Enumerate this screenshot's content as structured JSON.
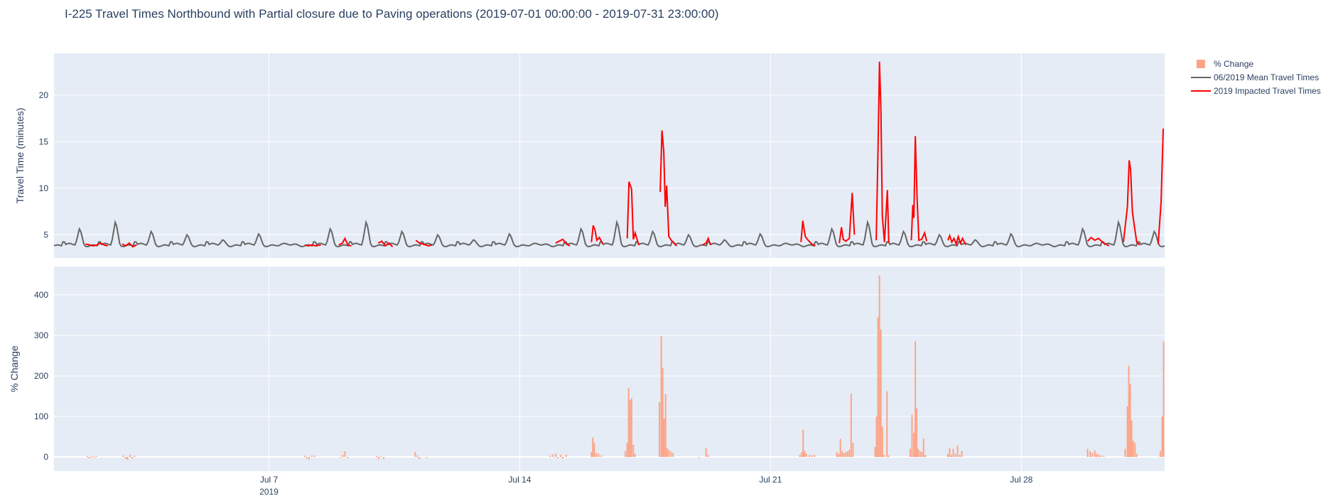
{
  "chart_data": {
    "type": "line+bar",
    "title": "I-225 Travel Times Northbound with Partial closure due to Paving operations (2019-07-01 00:00:00 - 2019-07-31 23:00:00)",
    "legend": {
      "placement": "top-right",
      "entries": [
        "% Change",
        "06/2019 Mean Travel Times",
        "2019 Impacted Travel Times"
      ]
    },
    "colors": {
      "pct_change": "#fca487",
      "mean": "#666666",
      "impacted": "#ff0000",
      "plot_bg": "#e5ecf6",
      "grid": "#ffffff"
    },
    "x_axis": {
      "range_days": [
        1.0,
        32.0
      ],
      "ticks": [
        {
          "day": 7,
          "label": "Jul 7",
          "sublabel": "2019"
        },
        {
          "day": 14,
          "label": "Jul 14",
          "sublabel": ""
        },
        {
          "day": 21,
          "label": "Jul 21",
          "sublabel": ""
        },
        {
          "day": 28,
          "label": "Jul 28",
          "sublabel": ""
        }
      ]
    },
    "top_panel": {
      "ylabel": "Travel Time (minutes)",
      "ylim": [
        2.5,
        24.5
      ],
      "yticks": [
        5,
        10,
        15,
        20
      ],
      "mean_baseline": 3.9,
      "mean_daily_peaks": [
        [
          1.72,
          5.8
        ],
        [
          2.72,
          6.6
        ],
        [
          3.72,
          5.5
        ],
        [
          4.72,
          5.1
        ],
        [
          5.72,
          4.5
        ],
        [
          6.72,
          5.2
        ],
        [
          8.72,
          5.8
        ],
        [
          9.72,
          6.6
        ],
        [
          10.72,
          5.5
        ],
        [
          11.72,
          5.1
        ],
        [
          12.72,
          4.5
        ],
        [
          13.72,
          5.2
        ],
        [
          15.72,
          5.8
        ],
        [
          16.72,
          6.6
        ],
        [
          17.72,
          5.5
        ],
        [
          18.72,
          5.1
        ],
        [
          19.72,
          4.5
        ],
        [
          20.72,
          5.2
        ],
        [
          22.72,
          5.8
        ],
        [
          23.72,
          6.6
        ],
        [
          24.72,
          5.5
        ],
        [
          25.72,
          5.1
        ],
        [
          26.72,
          4.5
        ],
        [
          27.72,
          5.2
        ],
        [
          29.72,
          5.8
        ],
        [
          30.72,
          6.6
        ],
        [
          31.72,
          5.5
        ]
      ],
      "impacted_segments": [
        [
          [
            1.88,
            4.0
          ],
          [
            2.0,
            3.9
          ],
          [
            2.1,
            3.8
          ],
          [
            2.2,
            3.9
          ],
          [
            2.3,
            4.1
          ],
          [
            2.4,
            3.9
          ],
          [
            2.5,
            3.8
          ]
        ],
        [
          [
            2.9,
            4.0
          ],
          [
            3.0,
            3.8
          ],
          [
            3.1,
            4.1
          ],
          [
            3.2,
            3.7
          ],
          [
            3.3,
            3.9
          ]
        ],
        [
          [
            8.0,
            3.9
          ],
          [
            8.1,
            3.8
          ],
          [
            8.2,
            3.9
          ],
          [
            8.3,
            3.8
          ],
          [
            8.45,
            3.9
          ]
        ],
        [
          [
            8.95,
            3.9
          ],
          [
            9.05,
            4.1
          ],
          [
            9.12,
            4.6
          ],
          [
            9.2,
            3.9
          ],
          [
            9.3,
            3.8
          ]
        ],
        [
          [
            10.05,
            4.1
          ],
          [
            10.15,
            4.3
          ],
          [
            10.25,
            3.8
          ],
          [
            10.35,
            4.1
          ],
          [
            10.45,
            3.7
          ]
        ],
        [
          [
            11.1,
            4.4
          ],
          [
            11.2,
            4.1
          ],
          [
            11.3,
            4.0
          ],
          [
            11.45,
            3.8
          ],
          [
            11.55,
            3.9
          ]
        ],
        [
          [
            15.0,
            4.1
          ],
          [
            15.1,
            4.3
          ],
          [
            15.2,
            4.5
          ],
          [
            15.3,
            4.0
          ],
          [
            15.4,
            3.8
          ]
        ],
        [
          [
            16.0,
            4.2
          ],
          [
            16.05,
            6.0
          ],
          [
            16.1,
            5.5
          ],
          [
            16.15,
            4.4
          ],
          [
            16.22,
            4.7
          ],
          [
            16.32,
            4.0
          ]
        ],
        [
          [
            17.0,
            4.6
          ],
          [
            17.05,
            10.7
          ],
          [
            17.12,
            9.9
          ],
          [
            17.17,
            4.5
          ],
          [
            17.22,
            5.2
          ],
          [
            17.32,
            3.9
          ]
        ],
        [
          [
            17.92,
            9.6
          ],
          [
            17.97,
            16.2
          ],
          [
            18.02,
            14.0
          ],
          [
            18.06,
            8.0
          ],
          [
            18.1,
            10.3
          ],
          [
            18.16,
            4.8
          ],
          [
            18.25,
            4.3
          ],
          [
            18.38,
            3.8
          ]
        ],
        [
          [
            19.1,
            3.9
          ],
          [
            19.2,
            4.1
          ],
          [
            19.26,
            4.6
          ],
          [
            19.32,
            3.9
          ]
        ],
        [
          [
            21.85,
            4.2
          ],
          [
            21.9,
            6.5
          ],
          [
            21.97,
            4.8
          ],
          [
            22.05,
            4.4
          ],
          [
            22.15,
            4.0
          ],
          [
            22.25,
            3.8
          ]
        ],
        [
          [
            22.92,
            4.1
          ],
          [
            22.98,
            5.8
          ],
          [
            23.03,
            4.5
          ],
          [
            23.1,
            4.3
          ],
          [
            23.2,
            4.6
          ],
          [
            23.28,
            9.5
          ],
          [
            23.34,
            5.0
          ]
        ],
        [
          [
            23.95,
            4.4
          ],
          [
            24.0,
            14.0
          ],
          [
            24.04,
            23.6
          ],
          [
            24.08,
            18.5
          ],
          [
            24.12,
            7.0
          ],
          [
            24.18,
            4.2
          ],
          [
            24.26,
            9.8
          ],
          [
            24.3,
            4.1
          ]
        ],
        [
          [
            24.93,
            4.4
          ],
          [
            24.97,
            8.2
          ],
          [
            25.0,
            6.8
          ],
          [
            25.04,
            15.6
          ],
          [
            25.09,
            9.0
          ],
          [
            25.14,
            4.4
          ],
          [
            25.22,
            4.5
          ],
          [
            25.3,
            5.2
          ],
          [
            25.36,
            4.3
          ]
        ],
        [
          [
            25.95,
            4.4
          ],
          [
            26.0,
            4.9
          ],
          [
            26.06,
            4.2
          ],
          [
            26.12,
            4.6
          ],
          [
            26.18,
            4.0
          ],
          [
            26.24,
            4.8
          ],
          [
            26.3,
            4.1
          ],
          [
            26.36,
            4.6
          ],
          [
            26.45,
            3.9
          ]
        ],
        [
          [
            29.85,
            4.3
          ],
          [
            29.95,
            4.7
          ],
          [
            30.05,
            4.4
          ],
          [
            30.15,
            4.6
          ],
          [
            30.3,
            4.1
          ],
          [
            30.45,
            3.8
          ]
        ],
        [
          [
            30.85,
            4.2
          ],
          [
            30.96,
            8.0
          ],
          [
            31.01,
            13.0
          ],
          [
            31.05,
            12.0
          ],
          [
            31.1,
            7.5
          ],
          [
            31.16,
            5.8
          ],
          [
            31.22,
            4.2
          ],
          [
            31.3,
            3.9
          ]
        ],
        [
          [
            31.82,
            4.0
          ],
          [
            31.9,
            8.5
          ],
          [
            31.96,
            16.4
          ]
        ]
      ]
    },
    "bottom_panel": {
      "ylabel": "% Change",
      "ylim": [
        -35,
        470
      ],
      "yticks": [
        0,
        100,
        200,
        300,
        400
      ],
      "bars": [
        [
          1.93,
          3
        ],
        [
          1.98,
          -3
        ],
        [
          2.03,
          -2
        ],
        [
          2.08,
          3
        ],
        [
          2.13,
          -2
        ],
        [
          2.18,
          2
        ],
        [
          2.93,
          4
        ],
        [
          3.0,
          -5
        ],
        [
          3.05,
          -7
        ],
        [
          3.12,
          5
        ],
        [
          3.18,
          -4
        ],
        [
          3.25,
          3
        ],
        [
          8.0,
          3
        ],
        [
          8.05,
          -4
        ],
        [
          8.12,
          -6
        ],
        [
          8.2,
          3
        ],
        [
          8.28,
          4
        ],
        [
          9.0,
          -2
        ],
        [
          9.06,
          5
        ],
        [
          9.12,
          14
        ],
        [
          9.2,
          -3
        ],
        [
          10.0,
          3
        ],
        [
          10.06,
          -6
        ],
        [
          10.12,
          2
        ],
        [
          10.2,
          -5
        ],
        [
          11.08,
          12
        ],
        [
          11.14,
          4
        ],
        [
          11.2,
          -5
        ],
        [
          11.4,
          -3
        ],
        [
          14.85,
          3
        ],
        [
          14.92,
          6
        ],
        [
          15.0,
          8
        ],
        [
          15.06,
          -3
        ],
        [
          15.14,
          5
        ],
        [
          15.2,
          -4
        ],
        [
          15.3,
          6
        ],
        [
          16.0,
          12
        ],
        [
          16.04,
          48
        ],
        [
          16.08,
          35
        ],
        [
          16.14,
          10
        ],
        [
          16.2,
          8
        ],
        [
          16.28,
          4
        ],
        [
          16.95,
          15
        ],
        [
          17.0,
          35
        ],
        [
          17.04,
          170
        ],
        [
          17.08,
          140
        ],
        [
          17.12,
          145
        ],
        [
          17.17,
          30
        ],
        [
          17.22,
          8
        ],
        [
          17.9,
          135
        ],
        [
          17.95,
          298
        ],
        [
          17.99,
          220
        ],
        [
          18.03,
          95
        ],
        [
          18.07,
          155
        ],
        [
          18.11,
          22
        ],
        [
          18.16,
          18
        ],
        [
          18.22,
          14
        ],
        [
          18.28,
          10
        ],
        [
          19.0,
          -3
        ],
        [
          19.2,
          22
        ],
        [
          19.26,
          5
        ],
        [
          21.82,
          5
        ],
        [
          21.87,
          12
        ],
        [
          21.91,
          67
        ],
        [
          21.95,
          15
        ],
        [
          22.0,
          8
        ],
        [
          22.08,
          5
        ],
        [
          22.15,
          4
        ],
        [
          22.22,
          5
        ],
        [
          22.85,
          12
        ],
        [
          22.9,
          8
        ],
        [
          22.95,
          45
        ],
        [
          23.0,
          15
        ],
        [
          23.05,
          10
        ],
        [
          23.1,
          12
        ],
        [
          23.15,
          14
        ],
        [
          23.2,
          18
        ],
        [
          23.25,
          156
        ],
        [
          23.3,
          35
        ],
        [
          23.92,
          25
        ],
        [
          23.96,
          100
        ],
        [
          24.0,
          345
        ],
        [
          24.04,
          448
        ],
        [
          24.08,
          315
        ],
        [
          24.12,
          75
        ],
        [
          24.17,
          5
        ],
        [
          24.25,
          162
        ],
        [
          24.3,
          4
        ],
        [
          24.9,
          20
        ],
        [
          24.95,
          105
        ],
        [
          25.0,
          60
        ],
        [
          25.04,
          285
        ],
        [
          25.08,
          120
        ],
        [
          25.12,
          20
        ],
        [
          25.17,
          15
        ],
        [
          25.22,
          12
        ],
        [
          25.27,
          45
        ],
        [
          25.32,
          5
        ],
        [
          25.95,
          8
        ],
        [
          26.0,
          22
        ],
        [
          26.05,
          5
        ],
        [
          26.1,
          20
        ],
        [
          26.16,
          8
        ],
        [
          26.22,
          28
        ],
        [
          26.28,
          6
        ],
        [
          26.34,
          15
        ],
        [
          29.85,
          20
        ],
        [
          29.92,
          14
        ],
        [
          29.98,
          10
        ],
        [
          30.05,
          16
        ],
        [
          30.1,
          8
        ],
        [
          30.16,
          6
        ],
        [
          30.22,
          4
        ],
        [
          30.3,
          3
        ],
        [
          30.9,
          20
        ],
        [
          30.96,
          125
        ],
        [
          31.0,
          225
        ],
        [
          31.04,
          180
        ],
        [
          31.08,
          90
        ],
        [
          31.12,
          40
        ],
        [
          31.17,
          35
        ],
        [
          31.22,
          8
        ],
        [
          31.88,
          15
        ],
        [
          31.93,
          100
        ],
        [
          31.97,
          285
        ]
      ]
    }
  }
}
